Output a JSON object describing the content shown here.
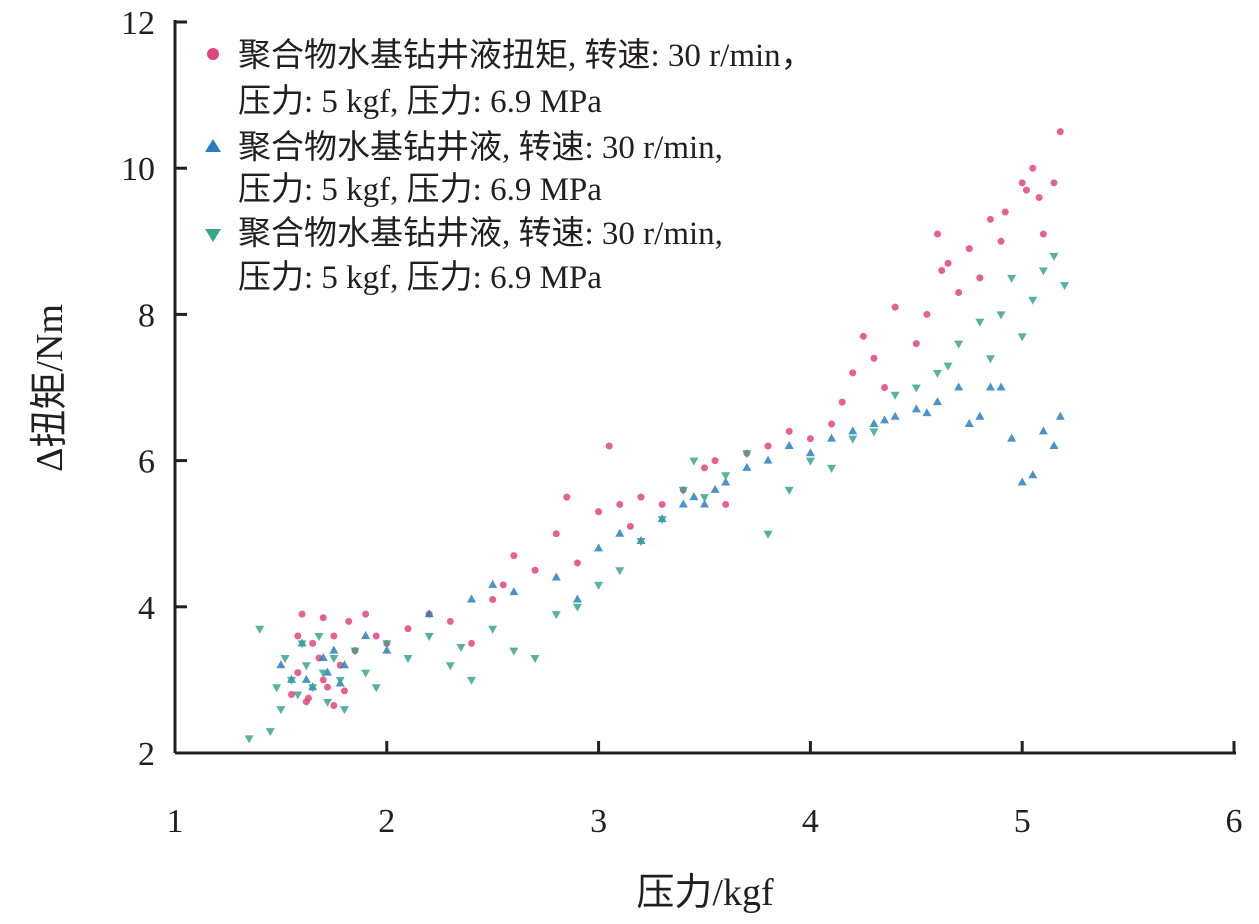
{
  "chart_data": {
    "type": "scatter",
    "xlabel": "压力/kgf",
    "ylabel": "Δ扭矩/Nm",
    "xlim": [
      1,
      6
    ],
    "ylim": [
      2,
      12
    ],
    "xticks": [
      "1",
      "2",
      "3",
      "4",
      "5",
      "6"
    ],
    "yticks": [
      "2",
      "4",
      "6",
      "8",
      "10",
      "12"
    ],
    "grid": false,
    "legend_position": "top-left",
    "series": [
      {
        "name": "聚合物水基钻井液扭矩, 转速: 30 r/min，",
        "name_line2": "压力: 5 kgf, 压力: 6.9 MPa",
        "marker": "circle",
        "color": "#e0457b",
        "points": [
          [
            1.55,
            2.8
          ],
          [
            1.58,
            3.1
          ],
          [
            1.6,
            3.9
          ],
          [
            1.62,
            2.7
          ],
          [
            1.65,
            3.5
          ],
          [
            1.68,
            3.3
          ],
          [
            1.7,
            3.0
          ],
          [
            1.72,
            2.9
          ],
          [
            1.75,
            3.6
          ],
          [
            1.78,
            3.2
          ],
          [
            1.8,
            2.85
          ],
          [
            1.82,
            3.8
          ],
          [
            1.85,
            3.4
          ],
          [
            1.9,
            3.9
          ],
          [
            1.95,
            3.6
          ],
          [
            2.0,
            3.5
          ],
          [
            2.1,
            3.7
          ],
          [
            2.2,
            3.9
          ],
          [
            2.3,
            3.8
          ],
          [
            2.4,
            3.5
          ],
          [
            2.5,
            4.1
          ],
          [
            2.55,
            4.3
          ],
          [
            2.6,
            4.7
          ],
          [
            2.7,
            4.5
          ],
          [
            2.8,
            5.0
          ],
          [
            2.85,
            5.5
          ],
          [
            2.9,
            4.6
          ],
          [
            3.0,
            5.3
          ],
          [
            3.05,
            6.2
          ],
          [
            3.1,
            5.4
          ],
          [
            3.15,
            5.1
          ],
          [
            3.2,
            5.5
          ],
          [
            3.3,
            5.4
          ],
          [
            3.4,
            5.6
          ],
          [
            3.5,
            5.9
          ],
          [
            3.55,
            6.0
          ],
          [
            3.6,
            5.4
          ],
          [
            3.7,
            6.1
          ],
          [
            3.8,
            6.2
          ],
          [
            3.9,
            6.4
          ],
          [
            4.0,
            6.3
          ],
          [
            4.1,
            6.5
          ],
          [
            4.15,
            6.8
          ],
          [
            4.2,
            7.2
          ],
          [
            4.25,
            7.7
          ],
          [
            4.3,
            7.4
          ],
          [
            4.35,
            7.0
          ],
          [
            4.4,
            8.1
          ],
          [
            4.5,
            7.6
          ],
          [
            4.55,
            8.0
          ],
          [
            4.6,
            9.1
          ],
          [
            4.62,
            8.6
          ],
          [
            4.65,
            8.7
          ],
          [
            4.7,
            8.3
          ],
          [
            4.75,
            8.9
          ],
          [
            4.8,
            8.5
          ],
          [
            4.85,
            9.3
          ],
          [
            4.9,
            9.0
          ],
          [
            4.92,
            9.4
          ],
          [
            5.0,
            9.8
          ],
          [
            5.02,
            9.7
          ],
          [
            5.05,
            10.0
          ],
          [
            5.08,
            9.6
          ],
          [
            5.1,
            9.1
          ],
          [
            5.15,
            9.8
          ],
          [
            5.18,
            10.5
          ],
          [
            1.63,
            2.75
          ],
          [
            1.7,
            3.85
          ],
          [
            1.75,
            2.65
          ],
          [
            1.58,
            3.6
          ]
        ]
      },
      {
        "name": "聚合物水基钻井液, 转速: 30 r/min,",
        "name_line2": "压力: 5 kgf, 压力: 6.9 MPa",
        "marker": "triangle-up",
        "color": "#2b7ec1",
        "points": [
          [
            1.5,
            3.2
          ],
          [
            1.55,
            3.0
          ],
          [
            1.6,
            3.5
          ],
          [
            1.65,
            2.9
          ],
          [
            1.7,
            3.3
          ],
          [
            1.72,
            3.1
          ],
          [
            1.75,
            3.4
          ],
          [
            1.78,
            2.95
          ],
          [
            1.8,
            3.2
          ],
          [
            1.62,
            3.0
          ],
          [
            1.9,
            3.6
          ],
          [
            2.0,
            3.4
          ],
          [
            2.2,
            3.9
          ],
          [
            2.4,
            4.1
          ],
          [
            2.5,
            4.3
          ],
          [
            2.6,
            4.2
          ],
          [
            2.8,
            4.4
          ],
          [
            2.9,
            4.1
          ],
          [
            3.0,
            4.8
          ],
          [
            3.1,
            5.0
          ],
          [
            3.2,
            4.9
          ],
          [
            3.3,
            5.2
          ],
          [
            3.4,
            5.4
          ],
          [
            3.45,
            5.5
          ],
          [
            3.5,
            5.4
          ],
          [
            3.55,
            5.6
          ],
          [
            3.6,
            5.7
          ],
          [
            3.7,
            5.9
          ],
          [
            3.8,
            6.0
          ],
          [
            3.9,
            6.2
          ],
          [
            4.0,
            6.1
          ],
          [
            4.1,
            6.3
          ],
          [
            4.2,
            6.4
          ],
          [
            4.3,
            6.5
          ],
          [
            4.4,
            6.6
          ],
          [
            4.5,
            6.7
          ],
          [
            4.6,
            6.8
          ],
          [
            4.7,
            7.0
          ],
          [
            4.8,
            6.6
          ],
          [
            4.85,
            7.0
          ],
          [
            4.9,
            7.0
          ],
          [
            4.95,
            6.3
          ],
          [
            5.0,
            5.7
          ],
          [
            5.05,
            5.8
          ],
          [
            5.1,
            6.4
          ],
          [
            5.15,
            6.2
          ],
          [
            5.18,
            6.6
          ],
          [
            4.75,
            6.5
          ],
          [
            4.55,
            6.65
          ],
          [
            4.35,
            6.55
          ]
        ]
      },
      {
        "name": "聚合物水基钻井液, 转速: 30 r/min,",
        "name_line2": "压力: 5 kgf, 压力: 6.9 MPa",
        "marker": "triangle-down",
        "color": "#3aa58f",
        "points": [
          [
            1.35,
            2.2
          ],
          [
            1.4,
            3.7
          ],
          [
            1.45,
            2.3
          ],
          [
            1.5,
            2.6
          ],
          [
            1.52,
            3.3
          ],
          [
            1.55,
            3.0
          ],
          [
            1.58,
            2.8
          ],
          [
            1.6,
            3.5
          ],
          [
            1.62,
            3.2
          ],
          [
            1.65,
            2.9
          ],
          [
            1.68,
            3.6
          ],
          [
            1.7,
            3.1
          ],
          [
            1.72,
            2.7
          ],
          [
            1.75,
            3.3
          ],
          [
            1.78,
            3.0
          ],
          [
            1.8,
            2.6
          ],
          [
            1.85,
            3.4
          ],
          [
            1.9,
            3.1
          ],
          [
            2.0,
            3.5
          ],
          [
            2.1,
            3.3
          ],
          [
            2.2,
            3.6
          ],
          [
            2.3,
            3.2
          ],
          [
            2.4,
            3.0
          ],
          [
            2.5,
            3.7
          ],
          [
            2.6,
            3.4
          ],
          [
            2.7,
            3.3
          ],
          [
            2.8,
            3.9
          ],
          [
            2.9,
            4.0
          ],
          [
            3.0,
            4.3
          ],
          [
            3.1,
            4.5
          ],
          [
            3.2,
            4.9
          ],
          [
            3.3,
            5.2
          ],
          [
            3.4,
            5.6
          ],
          [
            3.45,
            6.0
          ],
          [
            3.5,
            5.5
          ],
          [
            3.6,
            5.8
          ],
          [
            3.7,
            6.1
          ],
          [
            3.8,
            5.0
          ],
          [
            3.9,
            5.6
          ],
          [
            4.0,
            6.0
          ],
          [
            4.1,
            5.9
          ],
          [
            4.2,
            6.3
          ],
          [
            4.3,
            6.4
          ],
          [
            4.4,
            6.9
          ],
          [
            4.5,
            7.0
          ],
          [
            4.6,
            7.2
          ],
          [
            4.7,
            7.6
          ],
          [
            4.8,
            7.9
          ],
          [
            4.9,
            8.0
          ],
          [
            5.0,
            7.7
          ],
          [
            5.05,
            8.2
          ],
          [
            5.1,
            8.6
          ],
          [
            5.15,
            8.8
          ],
          [
            5.2,
            8.4
          ],
          [
            4.95,
            8.5
          ],
          [
            4.85,
            7.4
          ],
          [
            4.65,
            7.3
          ],
          [
            1.48,
            2.9
          ],
          [
            1.95,
            2.9
          ],
          [
            2.35,
            3.45
          ]
        ]
      }
    ]
  }
}
